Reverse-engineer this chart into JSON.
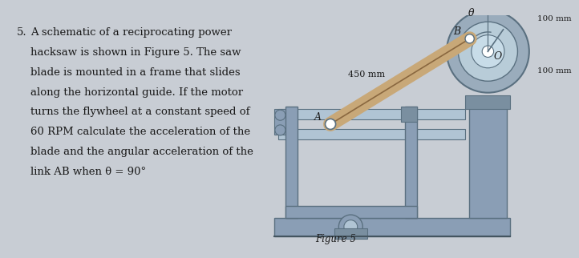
{
  "bg_color": "#c8cdd4",
  "text_color": "#1a1a1a",
  "problem_number": "5.",
  "problem_text_lines": [
    "A schematic of a reciprocating power",
    "hacksaw is shown in Figure 5. The saw",
    "blade is mounted in a frame that slides",
    "along the horizontal guide. If the m̲otor",
    "turns the flywheel at a constant speed of",
    "60 RPM calcu̲late the acceleration of the",
    "blade and the angular acceleration of the",
    "link AB when θ = 90°"
  ],
  "figure_label": "Figure 5",
  "label_450": "450 mm",
  "label_100_top": "100 mm",
  "label_100_right": "100 mm",
  "label_A": "A",
  "label_B": "B",
  "label_O": "O",
  "label_theta": "θ",
  "steel_color": "#8a9eb5",
  "steel_dark": "#5a7080",
  "steel_mid": "#7a8fa0",
  "steel_light": "#b0c4d4",
  "beam_color": "#c8a878",
  "beam_edge": "#8a6840",
  "wheel_outer": "#9aacbc",
  "wheel_ring": "#b8ccd8",
  "wheel_inner": "#c8dce8",
  "ground_color": "#7a8a94"
}
